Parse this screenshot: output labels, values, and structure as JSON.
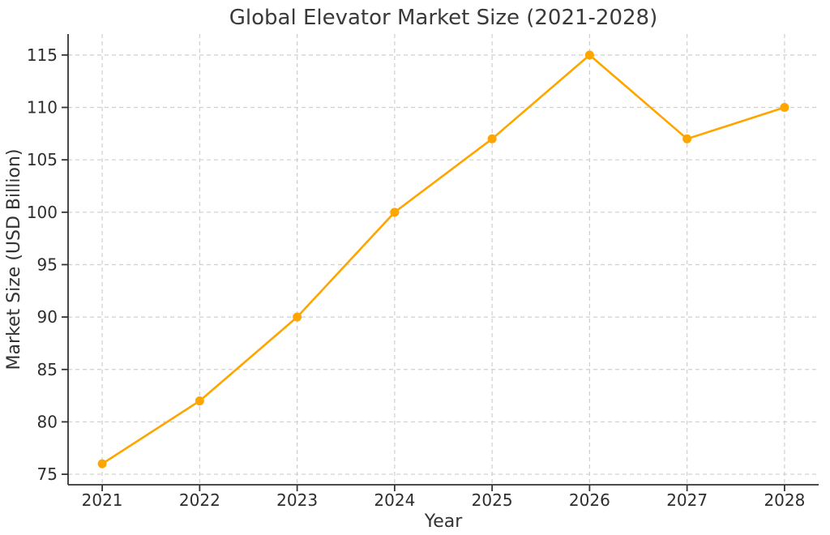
{
  "chart_data": {
    "type": "line",
    "title": "Global Elevator Market Size (2021-2028)",
    "xlabel": "Year",
    "ylabel": "Market Size (USD Billion)",
    "categories": [
      2021,
      2022,
      2023,
      2024,
      2025,
      2026,
      2027,
      2028
    ],
    "series": [
      {
        "name": "Market Size",
        "values": [
          76,
          82,
          90,
          100,
          107,
          115,
          107,
          110
        ],
        "color": "#FFA500",
        "marker": "circle"
      }
    ],
    "yticks": [
      75,
      80,
      85,
      90,
      95,
      100,
      105,
      110,
      115
    ],
    "ylim": [
      74,
      117
    ],
    "xlim": [
      2020.65,
      2028.35
    ],
    "grid": true,
    "grid_style": "dashed",
    "grid_color": "#CFCFCF",
    "axis_color": "#333333",
    "marker_radius": 5.5,
    "line_width": 2.6,
    "legend": "none",
    "background": "#FFFFFF"
  }
}
